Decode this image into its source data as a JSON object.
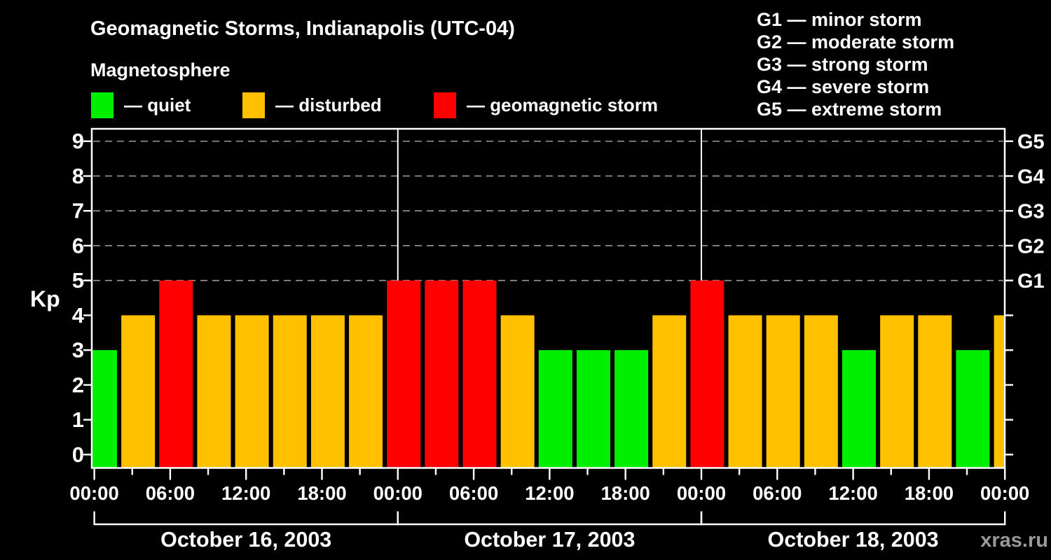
{
  "header": {
    "title": "Geomagnetic Storms, Indianapolis (UTC-04)",
    "subtitle": "Magnetosphere",
    "legend": [
      {
        "label": "— quiet",
        "color": "#00ee00"
      },
      {
        "label": "— disturbed",
        "color": "#ffc000"
      },
      {
        "label": "— geomagnetic storm",
        "color": "#ff0000"
      }
    ]
  },
  "g_scale_legend": [
    "G1 — minor storm",
    "G2 — moderate storm",
    "G3 — strong storm",
    "G4 — severe storm",
    "G5 — extreme storm"
  ],
  "watermark": "xras.ru",
  "chart_data": {
    "type": "bar",
    "title": "Geomagnetic Storms, Indianapolis (UTC-04)",
    "ylabel": "Kp",
    "ylim": [
      0,
      9
    ],
    "y_ticks": [
      "0",
      "1",
      "2",
      "3",
      "4",
      "5",
      "6",
      "7",
      "8",
      "9"
    ],
    "grid_levels": [
      5,
      6,
      7,
      8,
      9
    ],
    "grid_style": "dashed",
    "right_axis": [
      {
        "value": 5,
        "label": "G1"
      },
      {
        "value": 6,
        "label": "G2"
      },
      {
        "value": 7,
        "label": "G3"
      },
      {
        "value": 8,
        "label": "G4"
      },
      {
        "value": 9,
        "label": "G5"
      }
    ],
    "x_tick_labels": [
      "00:00",
      "06:00",
      "12:00",
      "18:00",
      "00:00",
      "06:00",
      "12:00",
      "18:00",
      "00:00",
      "06:00",
      "12:00",
      "18:00",
      "00:00"
    ],
    "hours_per_bar": 3,
    "days": [
      {
        "date": "October 16, 2003",
        "kp": [
          3,
          4,
          5,
          4,
          4,
          4,
          4,
          4
        ]
      },
      {
        "date": "October 17, 2003",
        "kp": [
          5,
          5,
          5,
          4,
          3,
          3,
          3,
          4
        ]
      },
      {
        "date": "October 18, 2003",
        "kp": [
          5,
          4,
          4,
          4,
          3,
          4,
          4,
          3
        ]
      }
    ],
    "next_day_partial_kp": 4,
    "colors": {
      "quiet": "#00ee00",
      "disturbed": "#ffc000",
      "storm": "#ff0000"
    },
    "color_thresholds": {
      "quiet_max_kp": 3,
      "storm_min_kp": 5
    },
    "day_boundary_lines_hours": [
      24,
      48
    ],
    "axis_color": "#ffffff",
    "grid_color": "#9a9a9a",
    "background": "#000000"
  }
}
